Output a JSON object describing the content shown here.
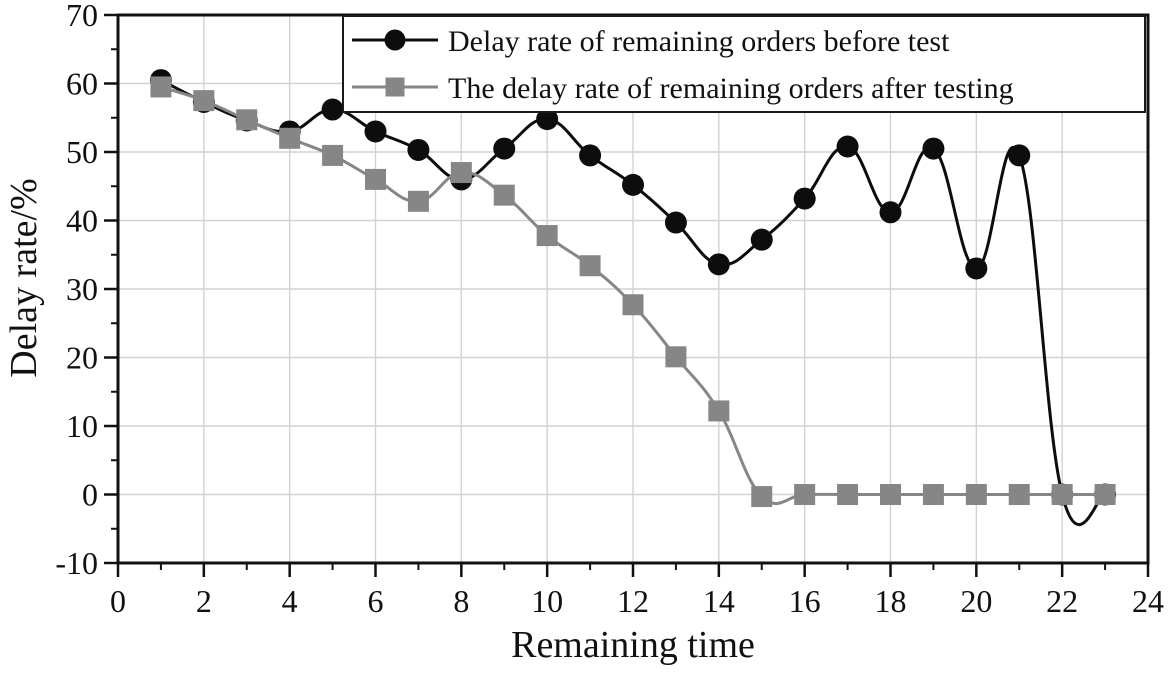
{
  "chart_data": {
    "type": "line",
    "title": "",
    "xlabel": "Remaining time",
    "ylabel": "Delay rate/%",
    "xlim": [
      0,
      24
    ],
    "ylim": [
      -10,
      70
    ],
    "x_major_ticks": [
      0,
      2,
      4,
      6,
      8,
      10,
      12,
      14,
      16,
      18,
      20,
      22,
      24
    ],
    "y_major_ticks": [
      -10,
      0,
      10,
      20,
      30,
      40,
      50,
      60,
      70
    ],
    "x_minor_step": 1,
    "y_minor_step": 5,
    "grid": true,
    "legend_position": "top-right-inside",
    "curve_style": "smooth-spline",
    "x": [
      1,
      2,
      3,
      4,
      5,
      6,
      7,
      8,
      9,
      10,
      11,
      12,
      13,
      14,
      15,
      16,
      17,
      18,
      19,
      20,
      21,
      22,
      23
    ],
    "series": [
      {
        "name": "Delay rate of remaining orders before test",
        "marker": "circle",
        "color": "#0d0d0d",
        "values": [
          60.5,
          57.3,
          54.6,
          53.0,
          56.2,
          53.0,
          50.3,
          46.0,
          50.5,
          54.8,
          49.5,
          45.2,
          39.7,
          33.6,
          37.2,
          43.2,
          50.8,
          41.2,
          50.5,
          33.0,
          49.5,
          0.0,
          0.0
        ]
      },
      {
        "name": "The delay rate of remaining orders after testing",
        "marker": "square",
        "color": "#868686",
        "values": [
          59.5,
          57.5,
          54.7,
          52.0,
          49.5,
          46.0,
          42.8,
          47.0,
          43.7,
          37.8,
          33.4,
          27.7,
          20.1,
          12.2,
          -0.3,
          0.0,
          0.0,
          0.0,
          0.0,
          0.0,
          0.0,
          0.0,
          0.0
        ]
      }
    ],
    "colors": {
      "frame": "#111111",
      "grid": "#d2d2d2",
      "background": "#ffffff",
      "legend_border": "#1a1a1a"
    }
  }
}
